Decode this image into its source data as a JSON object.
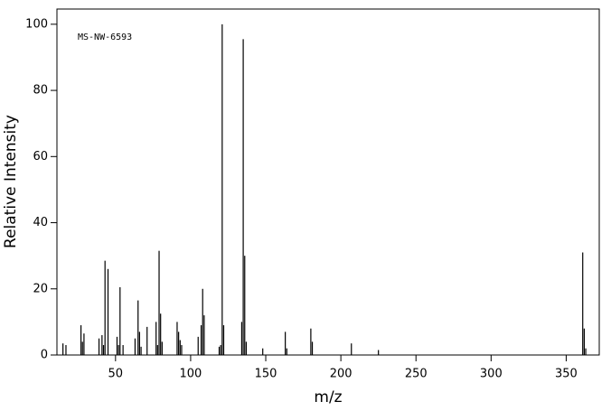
{
  "chart_data": {
    "type": "stick",
    "annotation": "MS-NW-6593",
    "x_label": "m/z",
    "y_label": "Relative Intensity",
    "color": "#000000",
    "x": [
      15,
      17,
      27,
      28,
      29,
      39,
      41,
      42,
      43,
      45,
      51,
      52,
      53,
      55,
      63,
      65,
      66,
      67,
      71,
      77,
      78,
      79,
      80,
      81,
      91,
      92,
      93,
      94,
      105,
      107,
      108,
      109,
      119,
      120,
      121,
      122,
      134,
      135,
      136,
      137,
      148,
      163,
      164,
      180,
      181,
      207,
      225,
      361,
      362,
      363
    ],
    "values": [
      3.5,
      3,
      9,
      4,
      6.5,
      5,
      6,
      3,
      28.5,
      26,
      5.5,
      3,
      20.5,
      3,
      5,
      16.5,
      7,
      2.5,
      8.5,
      10,
      3,
      31.5,
      12.5,
      4,
      10,
      7,
      4.5,
      3,
      5.5,
      9,
      20,
      12,
      2.5,
      3,
      100,
      9,
      10,
      95.5,
      30,
      4,
      2,
      7,
      2,
      8,
      4,
      3.5,
      1.5,
      31,
      8,
      2
    ],
    "xlim": [
      11,
      372
    ],
    "ylim": [
      0,
      104.6
    ],
    "xticks": [
      50,
      100,
      150,
      200,
      250,
      300,
      350
    ],
    "yticks": [
      0,
      20,
      40,
      60,
      80,
      100
    ]
  }
}
